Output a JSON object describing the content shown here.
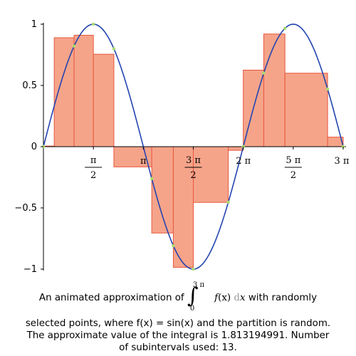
{
  "chart_data": {
    "type": "bar",
    "function": "sin(x)",
    "x_range_pi": [
      0,
      3
    ],
    "ylim": [
      -1,
      1
    ],
    "y_ticks": [
      {
        "value": 1,
        "label": "1"
      },
      {
        "value": 0.5,
        "label": "0.5"
      },
      {
        "value": 0,
        "label": "0"
      },
      {
        "value": -0.5,
        "label": "−0.5"
      },
      {
        "value": -1,
        "label": "−1"
      }
    ],
    "x_ticks": [
      {
        "value_pi": 0.5,
        "num": "π",
        "den": "2"
      },
      {
        "value_pi": 1.0,
        "num": "π",
        "den": ""
      },
      {
        "value_pi": 1.5,
        "num": "3 π",
        "den": "2"
      },
      {
        "value_pi": 2.0,
        "num": "2 π",
        "den": ""
      },
      {
        "value_pi": 2.5,
        "num": "5 π",
        "den": "2"
      },
      {
        "value_pi": 3.0,
        "num": "3 π",
        "den": ""
      }
    ],
    "bars": [
      {
        "x0_pi": 0.0,
        "x1_pi": 0.108,
        "sample_pi": 0.0,
        "height": 0.005
      },
      {
        "x0_pi": 0.108,
        "x1_pi": 0.307,
        "sample_pi": 0.307,
        "height": 0.89
      },
      {
        "x0_pi": 0.307,
        "x1_pi": 0.5,
        "sample_pi": 0.5,
        "height": 0.91
      },
      {
        "x0_pi": 0.5,
        "x1_pi": 0.705,
        "sample_pi": 0.705,
        "height": 0.755
      },
      {
        "x0_pi": 0.705,
        "x1_pi": 1.084,
        "sample_pi": 1.084,
        "height": -0.165
      },
      {
        "x0_pi": 1.084,
        "x1_pi": 1.3,
        "sample_pi": 1.3,
        "height": -0.705
      },
      {
        "x0_pi": 1.3,
        "x1_pi": 1.5,
        "sample_pi": 1.5,
        "height": -0.985
      },
      {
        "x0_pi": 1.5,
        "x1_pi": 1.85,
        "sample_pi": 1.85,
        "height": -0.455
      },
      {
        "x0_pi": 1.85,
        "x1_pi": 2.0,
        "sample_pi": 2.0,
        "height": -0.03
      },
      {
        "x0_pi": 2.0,
        "x1_pi": 2.205,
        "sample_pi": 2.205,
        "height": 0.625
      },
      {
        "x0_pi": 2.205,
        "x1_pi": 2.417,
        "sample_pi": 2.417,
        "height": 0.92
      },
      {
        "x0_pi": 2.417,
        "x1_pi": 2.844,
        "sample_pi": 2.844,
        "height": 0.6
      },
      {
        "x0_pi": 2.844,
        "x1_pi": 3.0,
        "sample_pi": 3.0,
        "height": 0.078
      }
    ],
    "colors": {
      "bar_fill": "#f5a48a",
      "bar_stroke": "#e8583d",
      "curve": "#2345b0",
      "sample_point": "#a8dc6e",
      "axis": "#000000"
    }
  },
  "caption": {
    "line1_prefix": "An animated approximation of",
    "integral_upper": "3 π",
    "integral_lower": "0",
    "integrand_f": "f",
    "integrand_x": "(x)",
    "integrand_d": "d",
    "integrand_dx": "x",
    "line1_suffix": "with randomly",
    "line2": "selected points, where f(x) = sin(x) and the partition is random.",
    "line3": "The approximate value of the integral is 1.813194991.  Number",
    "line4": "of subintervals used: 13."
  }
}
